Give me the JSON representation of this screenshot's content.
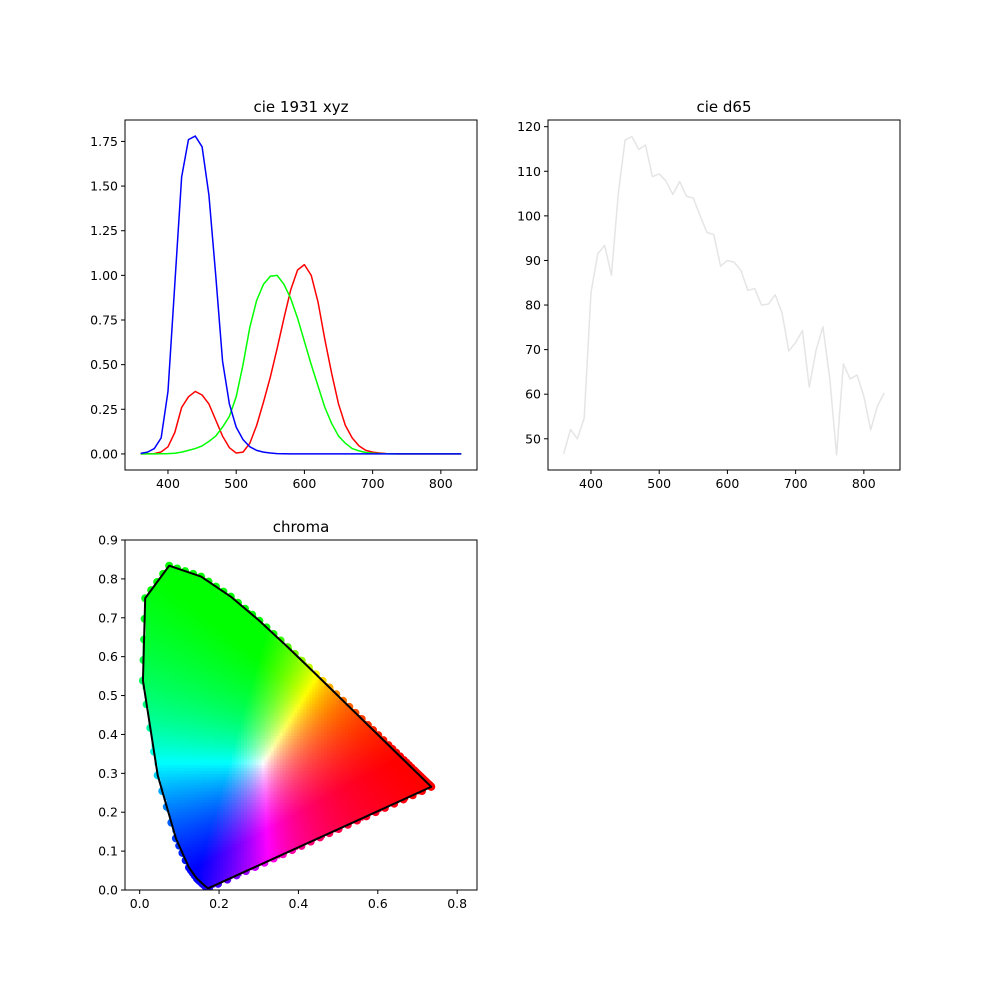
{
  "chart_data": [
    {
      "type": "line",
      "title": "cie 1931 xyz",
      "xlabel": "",
      "ylabel": "",
      "xlim": [
        337,
        853
      ],
      "ylim": [
        -0.09,
        1.87
      ],
      "xticks": [
        400,
        500,
        600,
        700,
        800
      ],
      "yticks": [
        0.0,
        0.25,
        0.5,
        0.75,
        1.0,
        1.25,
        1.5,
        1.75
      ],
      "ytick_labels": [
        "0.00",
        "0.25",
        "0.50",
        "0.75",
        "1.00",
        "1.25",
        "1.50",
        "1.75"
      ],
      "grid": false,
      "x": [
        360,
        370,
        380,
        390,
        400,
        410,
        420,
        430,
        440,
        450,
        460,
        470,
        480,
        490,
        500,
        510,
        520,
        530,
        540,
        550,
        560,
        570,
        580,
        590,
        600,
        610,
        620,
        630,
        640,
        650,
        660,
        670,
        680,
        690,
        700,
        710,
        720,
        730,
        740,
        750,
        760,
        770,
        780,
        790,
        800,
        810,
        820,
        830
      ],
      "series": [
        {
          "color": "#ff0000",
          "values": [
            0.0,
            0.001,
            0.002,
            0.011,
            0.04,
            0.12,
            0.26,
            0.32,
            0.35,
            0.33,
            0.28,
            0.19,
            0.1,
            0.035,
            0.005,
            0.01,
            0.06,
            0.16,
            0.29,
            0.43,
            0.59,
            0.76,
            0.92,
            1.03,
            1.06,
            1.0,
            0.85,
            0.64,
            0.45,
            0.28,
            0.16,
            0.09,
            0.045,
            0.02,
            0.01,
            0.005,
            0.002,
            0.001,
            0.0,
            0.0,
            0.0,
            0.0,
            0.0,
            0.0,
            0.0,
            0.0,
            0.0,
            0.0
          ]
        },
        {
          "color": "#00ff00",
          "values": [
            0.0,
            0.0,
            0.0,
            0.001,
            0.002,
            0.004,
            0.01,
            0.02,
            0.03,
            0.045,
            0.07,
            0.1,
            0.15,
            0.21,
            0.32,
            0.5,
            0.71,
            0.86,
            0.95,
            0.995,
            1.0,
            0.95,
            0.87,
            0.76,
            0.63,
            0.5,
            0.38,
            0.26,
            0.17,
            0.1,
            0.06,
            0.03,
            0.017,
            0.008,
            0.004,
            0.002,
            0.001,
            0.0,
            0.0,
            0.0,
            0.0,
            0.0,
            0.0,
            0.0,
            0.0,
            0.0,
            0.0,
            0.0
          ]
        },
        {
          "color": "#0000ff",
          "values": [
            0.003,
            0.01,
            0.03,
            0.09,
            0.35,
            0.95,
            1.55,
            1.76,
            1.78,
            1.72,
            1.45,
            1.0,
            0.52,
            0.28,
            0.15,
            0.08,
            0.04,
            0.02,
            0.01,
            0.005,
            0.002,
            0.001,
            0.0,
            0.0,
            0.0,
            0.0,
            0.0,
            0.0,
            0.0,
            0.0,
            0.0,
            0.0,
            0.0,
            0.0,
            0.0,
            0.0,
            0.0,
            0.0,
            0.0,
            0.0,
            0.0,
            0.0,
            0.0,
            0.0,
            0.0,
            0.0,
            0.0,
            0.0
          ]
        }
      ]
    },
    {
      "type": "line",
      "title": "cie d65",
      "xlabel": "",
      "ylabel": "",
      "xlim": [
        337,
        853
      ],
      "ylim": [
        43.0,
        121.5
      ],
      "xticks": [
        400,
        500,
        600,
        700,
        800
      ],
      "yticks": [
        50,
        60,
        70,
        80,
        90,
        100,
        110,
        120
      ],
      "grid": false,
      "x": [
        360,
        370,
        380,
        390,
        400,
        410,
        420,
        430,
        440,
        450,
        460,
        470,
        480,
        490,
        500,
        510,
        520,
        530,
        540,
        550,
        560,
        570,
        580,
        590,
        600,
        610,
        620,
        630,
        640,
        650,
        660,
        670,
        680,
        690,
        700,
        710,
        720,
        730,
        740,
        750,
        760,
        770,
        780,
        790,
        800,
        810,
        820,
        830
      ],
      "series": [
        {
          "color": "#e5e5e5",
          "values": [
            46.6,
            52.1,
            50.0,
            54.6,
            82.8,
            91.5,
            93.4,
            86.7,
            104.9,
            117.0,
            117.8,
            114.9,
            115.9,
            108.8,
            109.4,
            107.8,
            104.8,
            107.7,
            104.4,
            104.0,
            100.0,
            96.3,
            95.8,
            88.7,
            90.0,
            89.6,
            87.7,
            83.3,
            83.7,
            80.0,
            80.2,
            82.3,
            78.3,
            69.7,
            71.6,
            74.3,
            61.6,
            69.9,
            75.1,
            63.6,
            46.4,
            66.8,
            63.4,
            64.3,
            59.5,
            52.0,
            57.4,
            60.3
          ]
        }
      ]
    },
    {
      "type": "scatter",
      "title": "chroma",
      "xlabel": "",
      "ylabel": "",
      "xlim": [
        -0.037,
        0.85
      ],
      "ylim": [
        0,
        0.9
      ],
      "xticks": [
        0.0,
        0.2,
        0.4,
        0.6,
        0.8
      ],
      "xtick_labels": [
        "0.0",
        "0.2",
        "0.4",
        "0.6",
        "0.8"
      ],
      "yticks": [
        0.0,
        0.1,
        0.2,
        0.3,
        0.4,
        0.5,
        0.6,
        0.7,
        0.8,
        0.9
      ],
      "ytick_labels": [
        "0.0",
        "0.1",
        "0.2",
        "0.3",
        "0.4",
        "0.5",
        "0.6",
        "0.7",
        "0.8",
        "0.9"
      ],
      "grid": false,
      "locus": {
        "x": [
          0.1741,
          0.1738,
          0.1733,
          0.1726,
          0.1714,
          0.1689,
          0.1644,
          0.1566,
          0.144,
          0.1241,
          0.0913,
          0.0454,
          0.0082,
          0.0139,
          0.0743,
          0.1547,
          0.2296,
          0.3016,
          0.3731,
          0.4441,
          0.5125,
          0.5752,
          0.627,
          0.6658,
          0.6915,
          0.7079,
          0.719,
          0.726,
          0.73,
          0.732,
          0.7334,
          0.7347
        ],
        "y": [
          0.005,
          0.0049,
          0.0048,
          0.0048,
          0.0051,
          0.0069,
          0.0109,
          0.0177,
          0.0297,
          0.0578,
          0.1327,
          0.295,
          0.5384,
          0.7502,
          0.8338,
          0.8059,
          0.7543,
          0.6923,
          0.6245,
          0.5547,
          0.4866,
          0.4242,
          0.3725,
          0.334,
          0.3083,
          0.292,
          0.2809,
          0.274,
          0.27,
          0.268,
          0.2666,
          0.2653
        ]
      },
      "locus_color": "#000000"
    }
  ]
}
